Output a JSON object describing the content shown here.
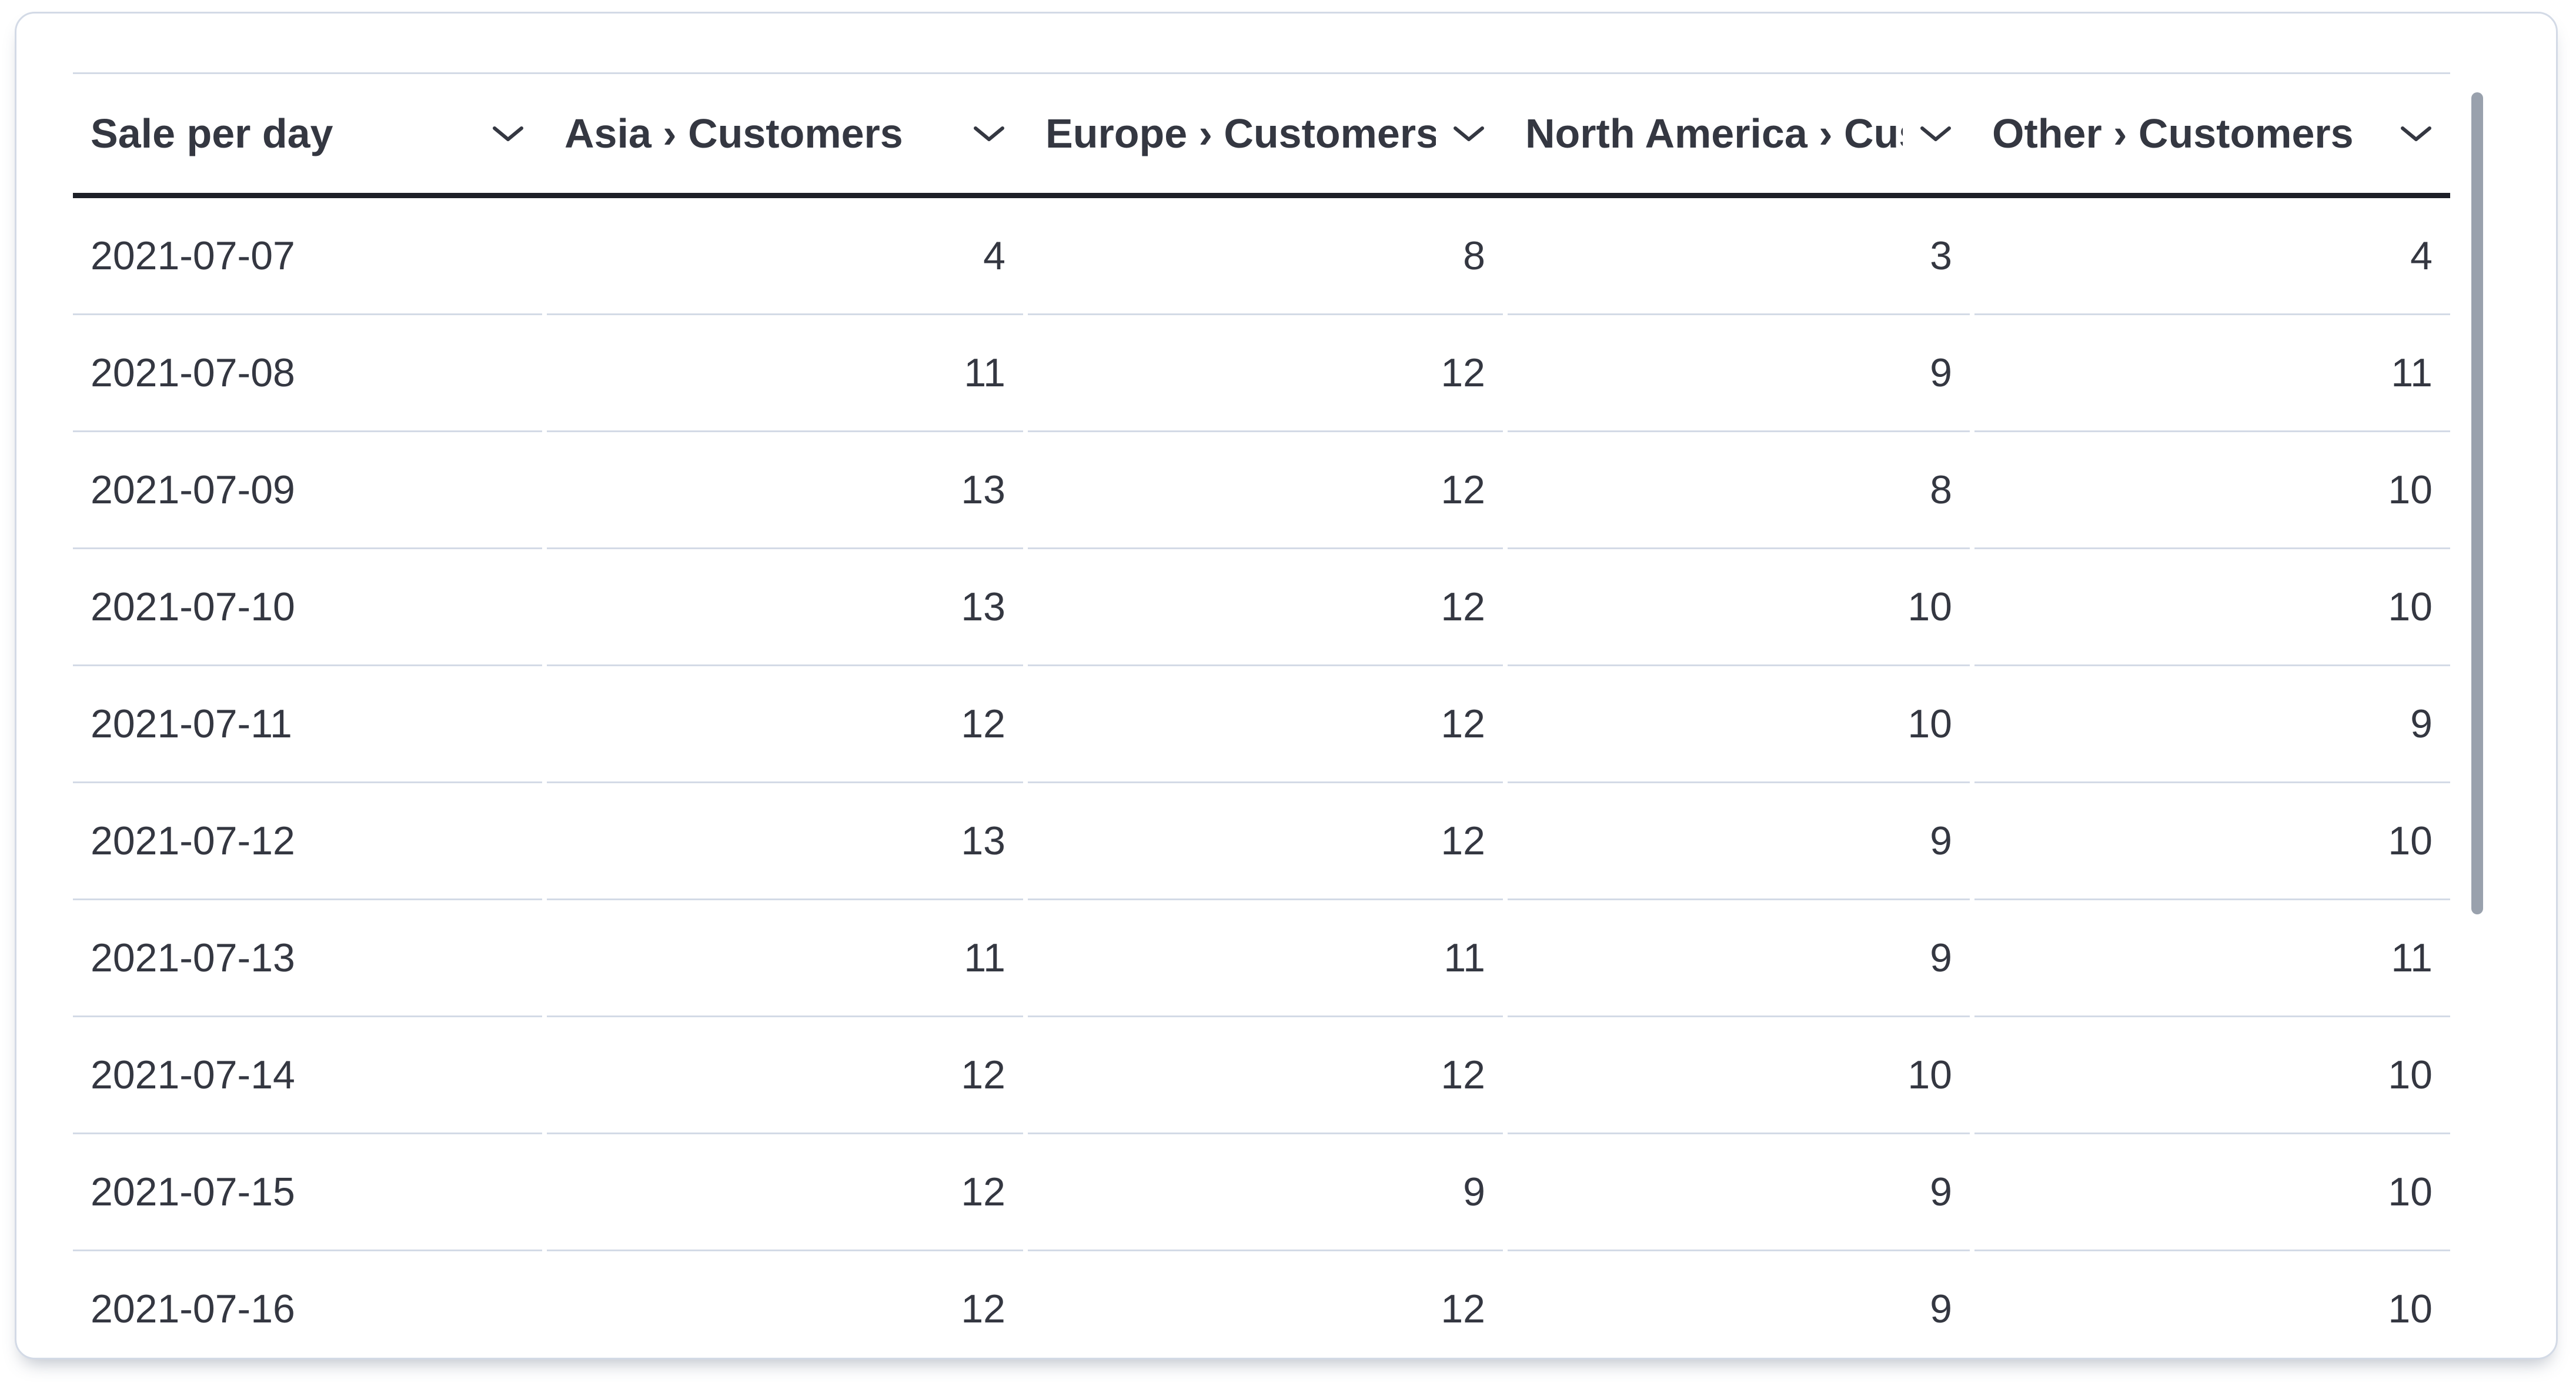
{
  "colors": {
    "text": "#343741",
    "row_border": "#d3dae6",
    "header_underline": "#1d1f27",
    "card_border": "#d3dae6",
    "scrollbar_thumb": "#99a1ad",
    "background": "#ffffff"
  },
  "icons": {
    "header_sort": "chevron-down-icon"
  },
  "table": {
    "columns": [
      {
        "id": "date",
        "label": "Sale per day",
        "align": "left"
      },
      {
        "id": "asia",
        "label": "Asia › Customers",
        "align": "right"
      },
      {
        "id": "europe",
        "label": "Europe › Customers",
        "align": "right"
      },
      {
        "id": "north-america",
        "label": "North America › Customers",
        "align": "right"
      },
      {
        "id": "other",
        "label": "Other › Customers",
        "align": "right"
      }
    ],
    "rows": [
      {
        "date": "2021-07-07",
        "values": [
          "4",
          "8",
          "3",
          "4"
        ]
      },
      {
        "date": "2021-07-08",
        "values": [
          "11",
          "12",
          "9",
          "11"
        ]
      },
      {
        "date": "2021-07-09",
        "values": [
          "13",
          "12",
          "8",
          "10"
        ]
      },
      {
        "date": "2021-07-10",
        "values": [
          "13",
          "12",
          "10",
          "10"
        ]
      },
      {
        "date": "2021-07-11",
        "values": [
          "12",
          "12",
          "10",
          "9"
        ]
      },
      {
        "date": "2021-07-12",
        "values": [
          "13",
          "12",
          "9",
          "10"
        ]
      },
      {
        "date": "2021-07-13",
        "values": [
          "11",
          "11",
          "9",
          "11"
        ]
      },
      {
        "date": "2021-07-14",
        "values": [
          "12",
          "12",
          "10",
          "10"
        ]
      },
      {
        "date": "2021-07-15",
        "values": [
          "12",
          "9",
          "9",
          "10"
        ]
      },
      {
        "date": "2021-07-16",
        "values": [
          "12",
          "12",
          "9",
          "10"
        ]
      }
    ]
  }
}
